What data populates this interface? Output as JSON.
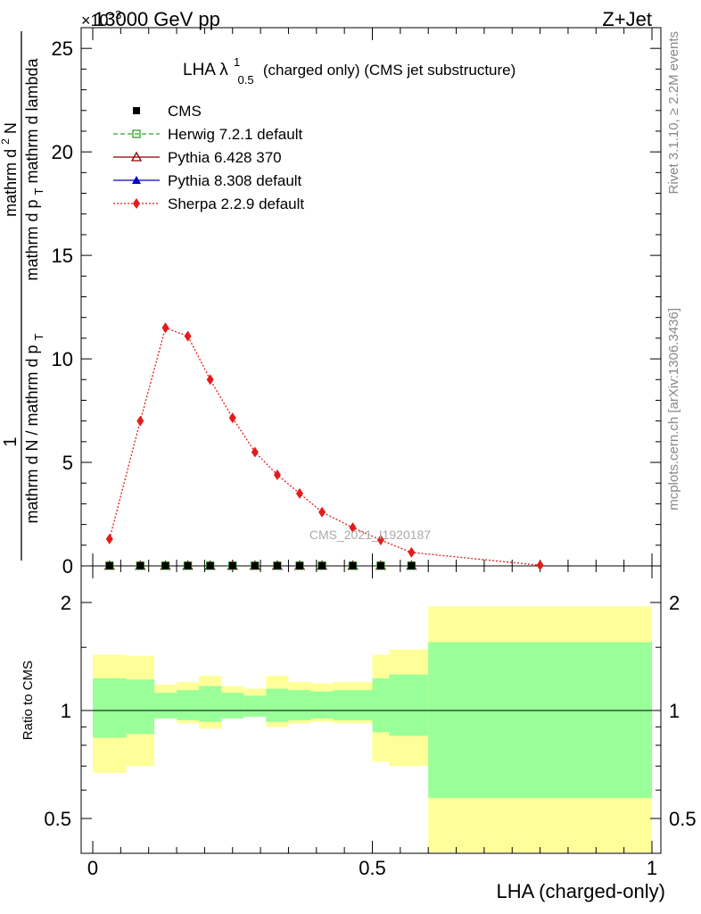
{
  "header": {
    "energy_label": "13000 GeV pp",
    "process_label": "Z+Jet",
    "exponent_label": "×10",
    "exponent_power": "−3"
  },
  "side_text": {
    "rivet": "Rivet 3.1.10, ≥ 2.2M events",
    "mcplots": "mcplots.cern.ch [arXiv:1306.3436]"
  },
  "watermark": "CMS_2021_I1920187",
  "top_title": {
    "prefix": "LHA λ",
    "superscript": "1",
    "subscript": "0.5",
    "suffix": "(charged only) (CMS jet substructure)"
  },
  "y_axis_label_top": "mathrm d N / mathrm d p_T mathrm d lambda",
  "y_axis_label_top_parts": {
    "numerator_1": "1",
    "denominator_1a": "mathrm d N / mathrm d p",
    "denominator_1sub": "T",
    "numerator_2a": "mathrm d",
    "numerator_2sup": "2",
    "numerator_2b": "N",
    "denominator_2a": "mathrm d p",
    "denominator_2sub": "T",
    "denominator_2b": "mathrm d lambda"
  },
  "x_axis_label": "LHA (charged-only)",
  "ratio_y_label": "Ratio to CMS",
  "legend": [
    {
      "name": "CMS",
      "color": "#000000",
      "marker": "square-filled",
      "line": "none"
    },
    {
      "name": "Herwig 7.2.1 default",
      "color": "#33a02c",
      "marker": "square-open",
      "line": "dashed"
    },
    {
      "name": "Pythia 6.428 370",
      "color": "#8b0000",
      "marker": "triangle-open",
      "line": "solid"
    },
    {
      "name": "Pythia 8.308 default",
      "color": "#0000cc",
      "marker": "triangle-filled",
      "line": "solid"
    },
    {
      "name": "Sherpa 2.2.9 default",
      "color": "#e41a1c",
      "marker": "diamond-filled",
      "line": "dotted"
    }
  ],
  "chart_data": {
    "type": "line",
    "x": [
      0.03,
      0.085,
      0.13,
      0.17,
      0.21,
      0.25,
      0.29,
      0.33,
      0.37,
      0.41,
      0.465,
      0.515,
      0.57,
      0.8
    ],
    "bin_edges": [
      0.0,
      0.06,
      0.11,
      0.15,
      0.19,
      0.23,
      0.27,
      0.31,
      0.35,
      0.39,
      0.43,
      0.5,
      0.53,
      0.6,
      1.0
    ],
    "series": [
      {
        "name": "Sherpa 2.2.9 default",
        "values": [
          1.3,
          7.0,
          11.5,
          11.1,
          9.0,
          7.15,
          5.5,
          4.4,
          3.5,
          2.6,
          1.85,
          1.25,
          0.65,
          0.03
        ]
      },
      {
        "name": "CMS",
        "values": [
          0.01,
          0.01,
          0.01,
          0.01,
          0.01,
          0.01,
          0.01,
          0.01,
          0.01,
          0.01,
          0.01,
          0.01,
          0.01,
          0.0
        ]
      },
      {
        "name": "Herwig 7.2.1 default",
        "values": [
          0.01,
          0.01,
          0.01,
          0.01,
          0.01,
          0.01,
          0.01,
          0.01,
          0.01,
          0.01,
          0.01,
          0.01,
          0.01,
          0.0
        ]
      },
      {
        "name": "Pythia 6.428 370",
        "values": [
          0.01,
          0.01,
          0.01,
          0.01,
          0.01,
          0.01,
          0.01,
          0.01,
          0.01,
          0.01,
          0.01,
          0.01,
          0.01,
          0.0
        ]
      },
      {
        "name": "Pythia 8.308 default",
        "values": [
          0.01,
          0.01,
          0.01,
          0.01,
          0.01,
          0.01,
          0.01,
          0.01,
          0.01,
          0.01,
          0.01,
          0.01,
          0.01,
          0.0
        ]
      }
    ],
    "xlim": [
      0,
      1
    ],
    "ylim": [
      0,
      26
    ],
    "yticks": [
      0,
      5,
      10,
      15,
      20,
      25
    ],
    "xticks": [
      "0",
      "0.5",
      "1"
    ],
    "ratio": {
      "ylim": [
        0.35,
        2.3
      ],
      "yticks": [
        "0.5",
        "1",
        "2"
      ],
      "yellow_band": [
        [
          0.67,
          1.43
        ],
        [
          0.7,
          1.42
        ],
        [
          0.95,
          1.18
        ],
        [
          0.92,
          1.2
        ],
        [
          0.89,
          1.25
        ],
        [
          0.95,
          1.17
        ],
        [
          0.97,
          1.15
        ],
        [
          0.9,
          1.25
        ],
        [
          0.92,
          1.2
        ],
        [
          0.93,
          1.19
        ],
        [
          0.92,
          1.2
        ],
        [
          0.72,
          1.43
        ],
        [
          0.7,
          1.48
        ],
        [
          0.38,
          1.95
        ]
      ],
      "green_band": [
        [
          0.84,
          1.23
        ],
        [
          0.86,
          1.22
        ],
        [
          0.95,
          1.12
        ],
        [
          0.94,
          1.14
        ],
        [
          0.93,
          1.17
        ],
        [
          0.95,
          1.12
        ],
        [
          0.96,
          1.1
        ],
        [
          0.93,
          1.15
        ],
        [
          0.94,
          1.14
        ],
        [
          0.95,
          1.13
        ],
        [
          0.94,
          1.14
        ],
        [
          0.87,
          1.23
        ],
        [
          0.85,
          1.26
        ],
        [
          0.57,
          1.55
        ]
      ]
    },
    "legend_position": "top-left"
  }
}
